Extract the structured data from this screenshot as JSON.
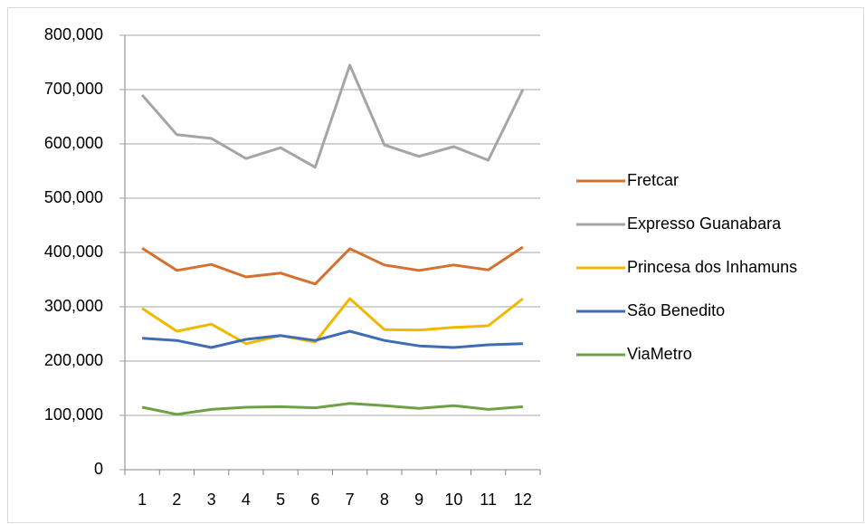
{
  "chart_data": {
    "type": "line",
    "categories": [
      "1",
      "2",
      "3",
      "4",
      "5",
      "6",
      "7",
      "8",
      "9",
      "10",
      "11",
      "12"
    ],
    "series": [
      {
        "name": "Fretcar",
        "color": "#d5712f",
        "values": [
          408000,
          367000,
          378000,
          355000,
          362000,
          342000,
          407000,
          377000,
          367000,
          377000,
          368000,
          410000
        ]
      },
      {
        "name": "Expresso Guanabara",
        "color": "#a5a5a5",
        "values": [
          690000,
          617000,
          610000,
          573000,
          593000,
          557000,
          745000,
          598000,
          577000,
          595000,
          570000,
          700000
        ]
      },
      {
        "name": "Princesa dos Inhamuns",
        "color": "#f0b800",
        "values": [
          297000,
          255000,
          268000,
          232000,
          247000,
          235000,
          315000,
          258000,
          257000,
          262000,
          265000,
          315000
        ]
      },
      {
        "name": "São Benedito",
        "color": "#3f6db3",
        "values": [
          242000,
          238000,
          225000,
          240000,
          247000,
          238000,
          255000,
          238000,
          228000,
          225000,
          230000,
          232000
        ]
      },
      {
        "name": "ViaMetro",
        "color": "#6ea046",
        "values": [
          115000,
          102000,
          111000,
          115000,
          116000,
          114000,
          122000,
          118000,
          113000,
          118000,
          111000,
          116000
        ]
      }
    ],
    "ylim": [
      0,
      800000
    ],
    "yticks": [
      0,
      {
        "value": 100000,
        "label": "100,000"
      },
      {
        "value": 200000,
        "label": "200,000"
      },
      {
        "value": 300000,
        "label": "300,000"
      },
      {
        "value": 400000,
        "label": "400,000"
      },
      {
        "value": 500000,
        "label": "500,000"
      },
      {
        "value": 600000,
        "label": "600,000"
      },
      {
        "value": 700000,
        "label": "700,000"
      },
      {
        "value": 800000,
        "label": "800,000"
      }
    ],
    "grid": true,
    "legend": "right"
  }
}
